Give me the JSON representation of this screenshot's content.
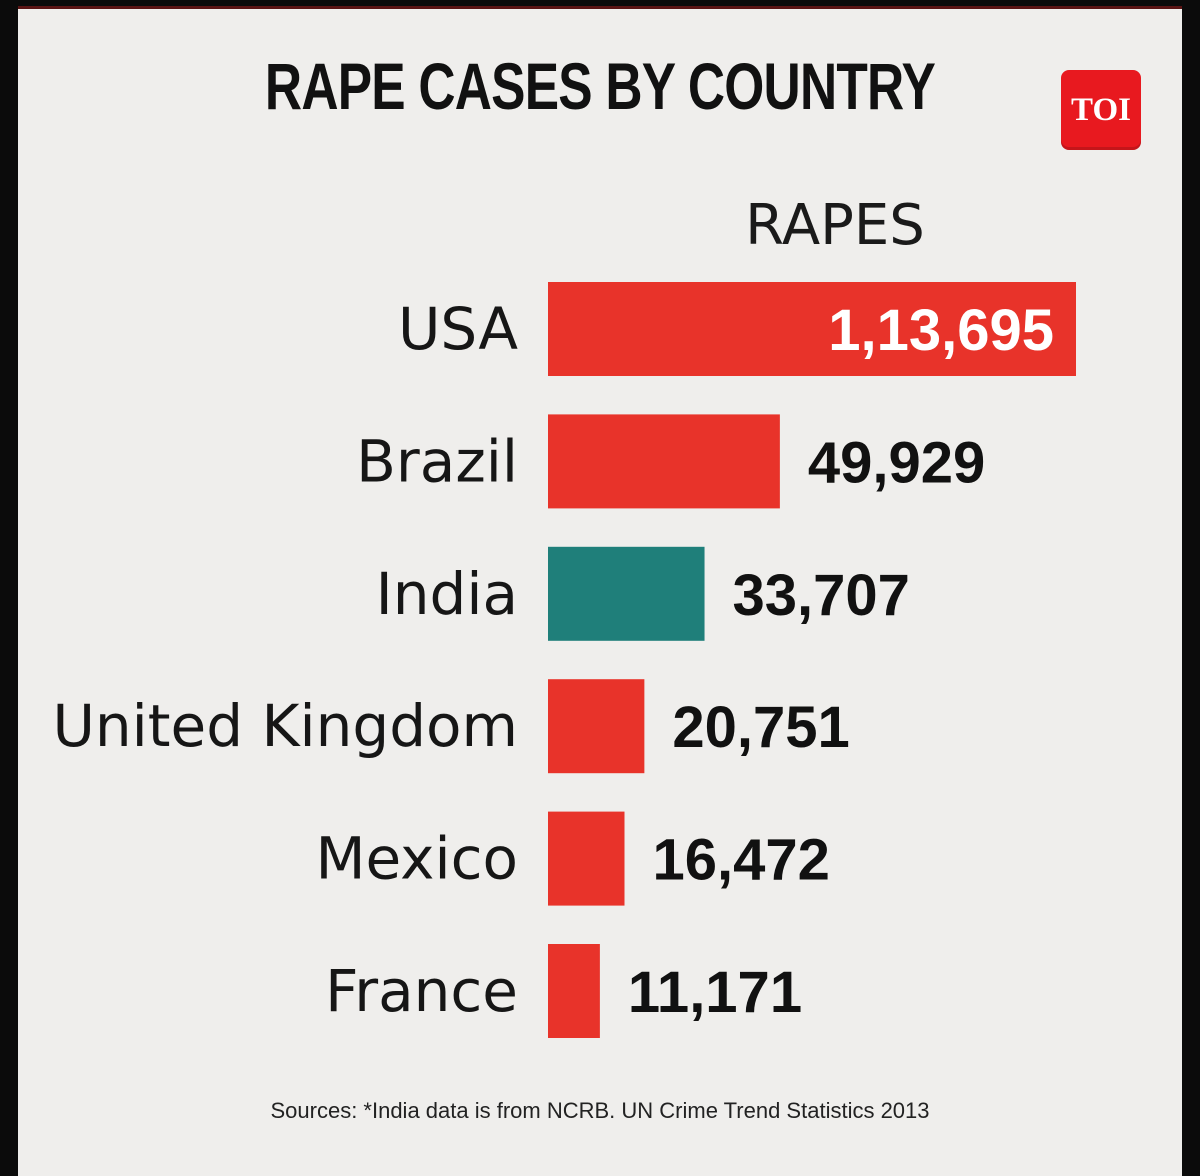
{
  "header": {
    "title": "RAPE CASES BY COUNTRY",
    "logo_text": "TOI"
  },
  "colors": {
    "bar_default": "#e8332a",
    "bar_highlight": "#1f7f7a",
    "background": "#efeeec"
  },
  "chart_data": {
    "type": "bar",
    "orientation": "horizontal",
    "title": "RAPE CASES BY COUNTRY",
    "value_header": "RAPES",
    "categories": [
      "USA",
      "Brazil",
      "India",
      "United Kingdom",
      "Mexico",
      "France"
    ],
    "values": [
      113695,
      49929,
      33707,
      20751,
      16472,
      11171
    ],
    "value_labels": [
      "1,13,695",
      "49,929",
      "33,707",
      "20,751",
      "16,472",
      "11,171"
    ],
    "highlight": [
      "India"
    ],
    "xlim": [
      0,
      113695
    ],
    "grid": false,
    "legend": "none"
  },
  "footer": {
    "source": "Sources: *India data is from NCRB. UN Crime Trend Statistics 2013"
  }
}
